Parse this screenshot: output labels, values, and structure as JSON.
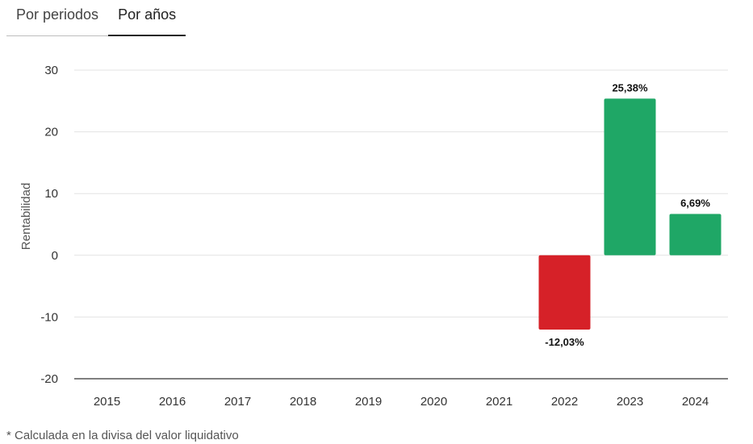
{
  "tabs": [
    {
      "label": "Por periodos",
      "active": false
    },
    {
      "label": "Por años",
      "active": true
    }
  ],
  "chart_data": {
    "type": "bar",
    "categories": [
      "2015",
      "2016",
      "2017",
      "2018",
      "2019",
      "2020",
      "2021",
      "2022",
      "2023",
      "2024"
    ],
    "values": [
      null,
      null,
      null,
      null,
      null,
      null,
      null,
      -12.03,
      25.38,
      6.69
    ],
    "data_labels": [
      null,
      null,
      null,
      null,
      null,
      null,
      null,
      "-12,03%",
      "25,38%",
      "6,69%"
    ],
    "ylabel": "Rentabilidad",
    "ylim": [
      -20,
      30
    ],
    "yticks": [
      30,
      20,
      10,
      0,
      -10,
      -20
    ],
    "grid": true,
    "colors": {
      "positive": "#1fa766",
      "negative": "#d62128",
      "grid": "#e3e3e3",
      "axis": "#333333"
    }
  },
  "footnote": "* Calculada en la divisa del valor liquidativo"
}
